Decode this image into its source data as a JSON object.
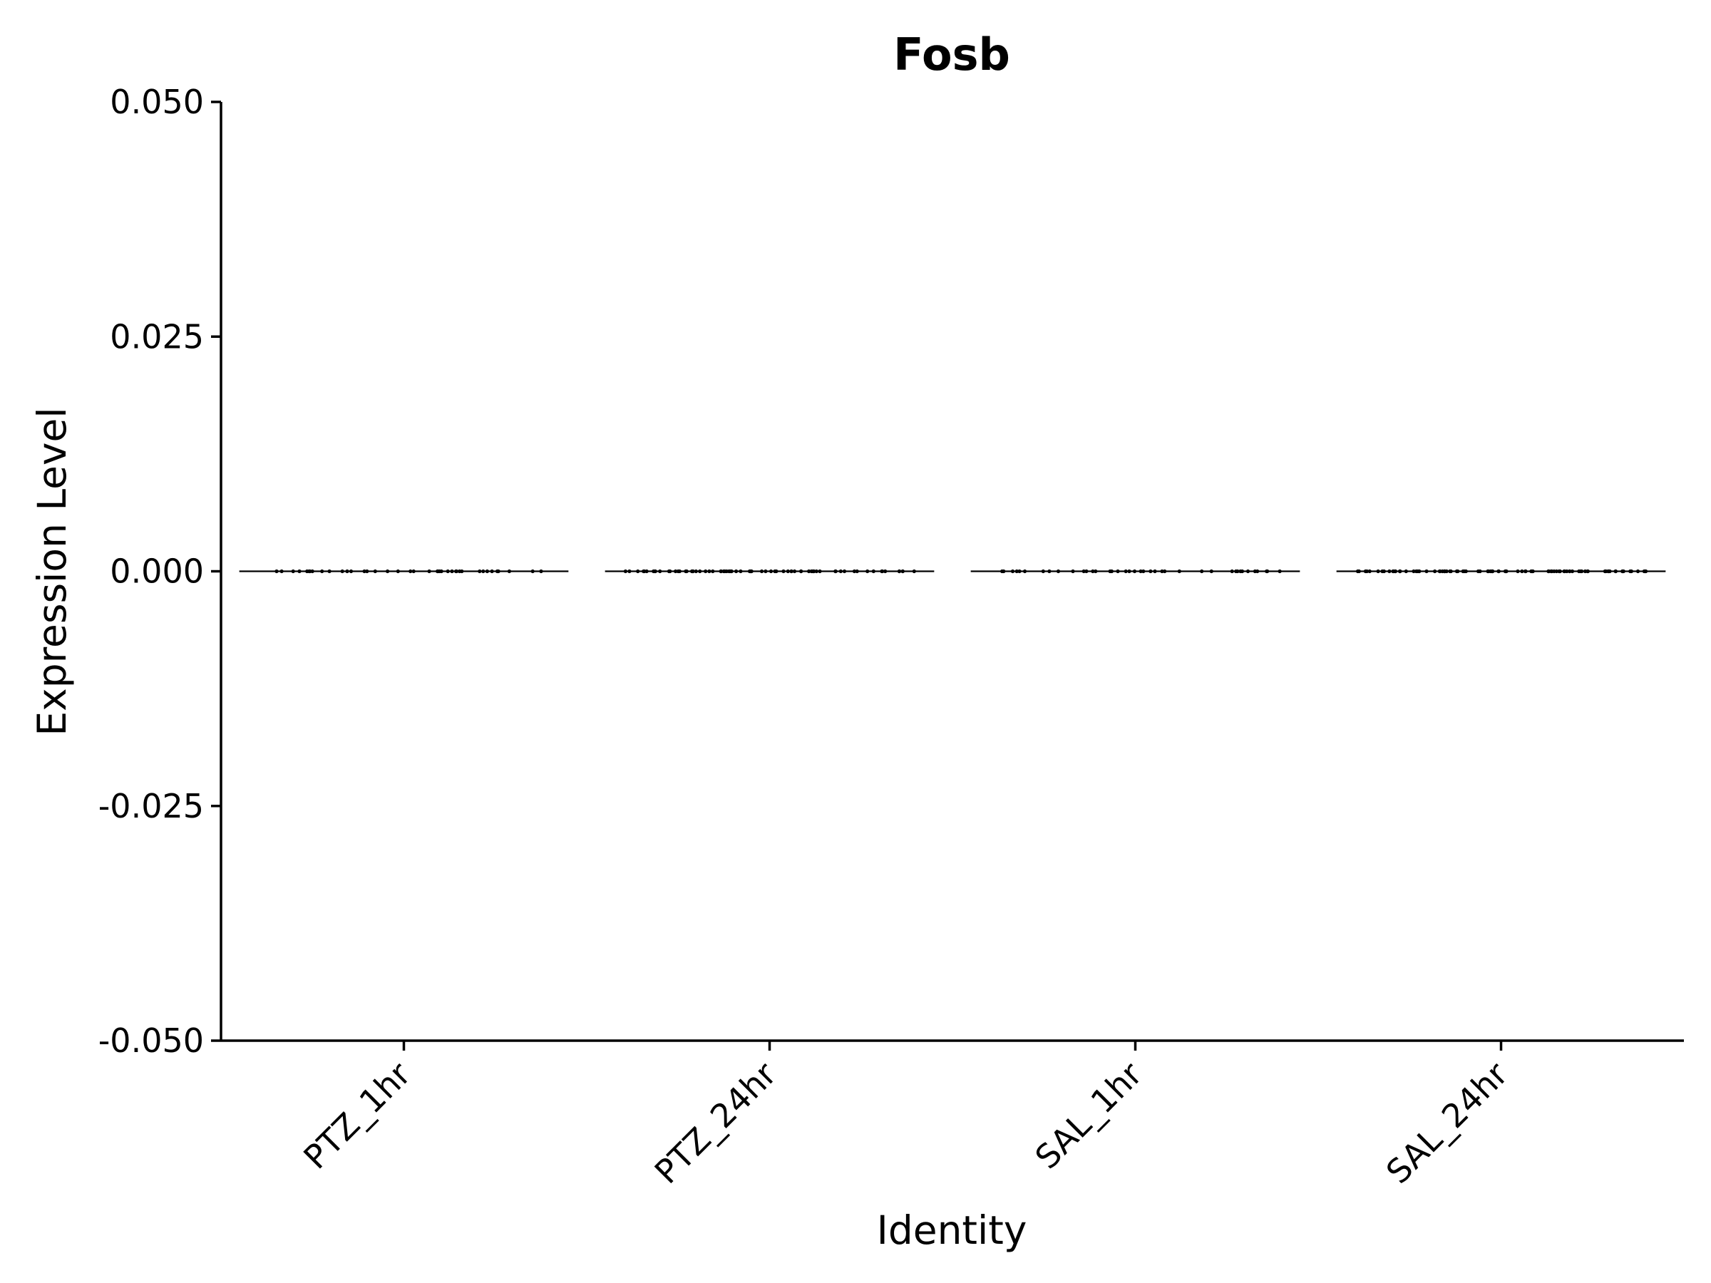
{
  "chart_data": {
    "type": "violin",
    "title": "Fosb",
    "xlabel": "Identity",
    "ylabel": "Expression Level",
    "categories": [
      "PTZ_1hr",
      "PTZ_24hr",
      "SAL_1hr",
      "SAL_24hr"
    ],
    "series": [
      {
        "category": "PTZ_1hr",
        "values_summary": "all cells at 0",
        "value": 0,
        "n_points": 40
      },
      {
        "category": "PTZ_24hr",
        "values_summary": "all cells at 0",
        "value": 0,
        "n_points": 75
      },
      {
        "category": "SAL_1hr",
        "values_summary": "all cells at 0",
        "value": 0,
        "n_points": 40
      },
      {
        "category": "SAL_24hr",
        "values_summary": "all cells at 0",
        "value": 0,
        "n_points": 95
      }
    ],
    "ylim": [
      -0.05,
      0.05
    ],
    "yticks": [
      {
        "value": -0.05,
        "label": "-0.050"
      },
      {
        "value": -0.025,
        "label": "-0.025"
      },
      {
        "value": 0,
        "label": "0.000"
      },
      {
        "value": 0.025,
        "label": "0.025"
      },
      {
        "value": 0.05,
        "label": "0.050"
      }
    ],
    "grid": false,
    "legend": "none",
    "colors": {
      "axis": "#000000",
      "violin": "#000000",
      "points": "#000000"
    }
  }
}
